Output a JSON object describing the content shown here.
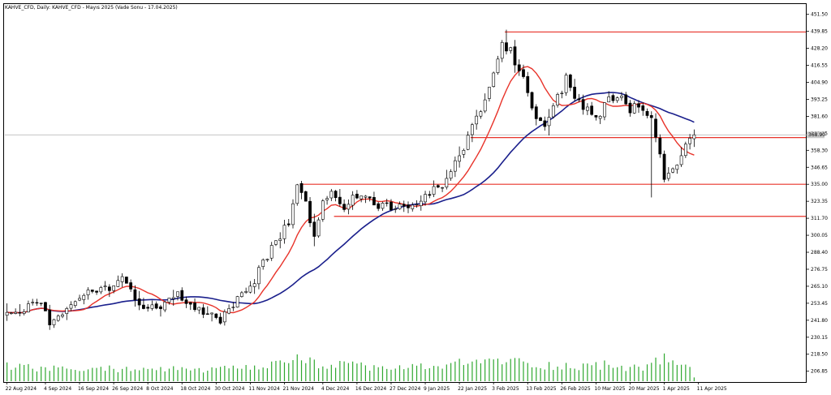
{
  "chart_data": {
    "type": "candlestick",
    "title": "KAHVE_CFD, Daily:  KAHVE_CFD - Mayıs 2025 (Vade Sonu - 17.04.2025)",
    "ylim": [
      200.0,
      458.0
    ],
    "y_ticks": [
      "451.50",
      "439.85",
      "428.20",
      "416.55",
      "404.90",
      "393.25",
      "381.60",
      "369.95",
      "358.30",
      "346.65",
      "335.00",
      "323.35",
      "311.70",
      "300.05",
      "288.40",
      "276.75",
      "265.10",
      "253.45",
      "241.80",
      "230.15",
      "218.50",
      "206.85"
    ],
    "x_tick_labels": [
      "22 Aug 2024",
      "4 Sep 2024",
      "16 Sep 2024",
      "26 Sep 2024",
      "8 Oct 2024",
      "18 Oct 2024",
      "30 Oct 2024",
      "11 Nov 2024",
      "21 Nov 2024",
      "4 Dec 2024",
      "16 Dec 2024",
      "27 Dec 2024",
      "9 Jan 2025",
      "22 Jan 2025",
      "3 Feb 2025",
      "13 Feb 2025",
      "26 Feb 2025",
      "10 Mar 2025",
      "20 Mar 2025",
      "1 Apr 2025",
      "11 Apr 2025"
    ],
    "x_tick_index": [
      0,
      9,
      17,
      25,
      33,
      41,
      49,
      57,
      65,
      74,
      82,
      90,
      98,
      106,
      114,
      122,
      130,
      138,
      146,
      154,
      162
    ],
    "current_price_label": "368.90",
    "horizontal_levels": [
      {
        "price": 439.4,
        "from_index": 117
      },
      {
        "price": 367.0,
        "from_index": 109
      },
      {
        "price": 335.0,
        "from_index": 69
      },
      {
        "price": 313.0,
        "from_index": 77
      }
    ],
    "current_price": 368.9,
    "series_colors": {
      "up_fill": "#ffffff",
      "down_fill": "#000000",
      "outline": "#000000",
      "ma_fast": "#e8332a",
      "ma_slow": "#1a1f8c",
      "level": "#e8332a",
      "volume": "#2fa82f"
    },
    "anchors": [
      [
        0,
        245,
        3
      ],
      [
        8,
        255,
        3
      ],
      [
        10,
        240,
        3
      ],
      [
        14,
        250,
        3
      ],
      [
        18,
        262,
        4
      ],
      [
        24,
        265,
        4
      ],
      [
        27,
        272,
        3
      ],
      [
        29,
        262,
        3
      ],
      [
        32,
        248,
        3
      ],
      [
        36,
        252,
        3
      ],
      [
        40,
        260,
        3
      ],
      [
        44,
        250,
        3
      ],
      [
        47,
        246,
        3
      ],
      [
        50,
        242,
        3
      ],
      [
        54,
        256,
        3
      ],
      [
        58,
        270,
        4
      ],
      [
        62,
        290,
        4
      ],
      [
        66,
        310,
        5
      ],
      [
        68,
        333,
        5
      ],
      [
        70,
        325,
        5
      ],
      [
        72,
        300,
        5
      ],
      [
        74,
        322,
        4
      ],
      [
        76,
        330,
        5
      ],
      [
        79,
        318,
        4
      ],
      [
        82,
        328,
        4
      ],
      [
        86,
        322,
        4
      ],
      [
        90,
        318,
        4
      ],
      [
        94,
        322,
        4
      ],
      [
        98,
        326,
        4
      ],
      [
        102,
        335,
        4
      ],
      [
        105,
        350,
        4
      ],
      [
        108,
        368,
        5
      ],
      [
        112,
        390,
        5
      ],
      [
        116,
        432,
        6
      ],
      [
        118,
        428,
        6
      ],
      [
        121,
        408,
        6
      ],
      [
        123,
        385,
        5
      ],
      [
        126,
        378,
        5
      ],
      [
        129,
        395,
        5
      ],
      [
        131,
        406,
        5
      ],
      [
        134,
        390,
        5
      ],
      [
        138,
        380,
        4
      ],
      [
        141,
        392,
        4
      ],
      [
        144,
        398,
        4
      ],
      [
        146,
        385,
        4
      ],
      [
        148,
        390,
        4
      ],
      [
        151,
        380,
        4
      ],
      [
        152,
        366,
        6
      ],
      [
        154,
        342,
        6
      ],
      [
        156,
        345,
        6
      ],
      [
        158,
        358,
        5
      ],
      [
        161,
        368,
        4
      ]
    ],
    "volume_anchors": [
      [
        0,
        18
      ],
      [
        15,
        14
      ],
      [
        30,
        16
      ],
      [
        45,
        14
      ],
      [
        60,
        16
      ],
      [
        66,
        28
      ],
      [
        72,
        22
      ],
      [
        80,
        19
      ],
      [
        90,
        16
      ],
      [
        100,
        18
      ],
      [
        110,
        24
      ],
      [
        116,
        26
      ],
      [
        122,
        22
      ],
      [
        130,
        18
      ],
      [
        140,
        20
      ],
      [
        150,
        16
      ],
      [
        154,
        30
      ],
      [
        156,
        22
      ],
      [
        160,
        18
      ],
      [
        161,
        6
      ]
    ],
    "bar_count": 162,
    "ma_fast_period": 10,
    "ma_slow_period": 30
  }
}
